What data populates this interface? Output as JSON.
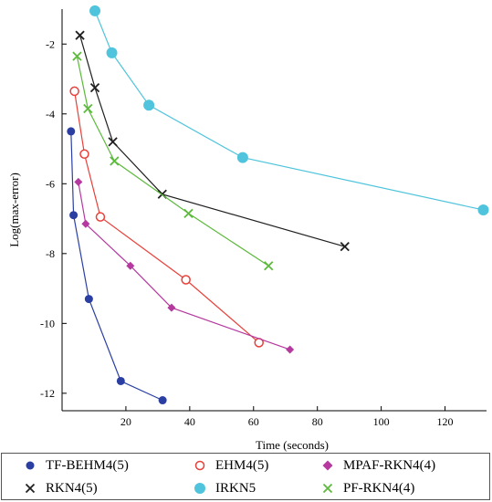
{
  "chart_data": {
    "type": "line",
    "title": "",
    "xlabel": "Time (seconds)",
    "ylabel": "Log(max-error)",
    "xlim": [
      0,
      133
    ],
    "ylim": [
      -12.5,
      -1.0
    ],
    "xticks": [
      20,
      40,
      60,
      80,
      100,
      120
    ],
    "yticks": [
      -2,
      -4,
      -6,
      -8,
      -10,
      -12
    ],
    "grid": false,
    "legend_position": "bottom",
    "series": [
      {
        "name": "TF-BEHM4(5)",
        "color": "#2b3fa3",
        "marker": "dot",
        "x": [
          2.8,
          3.6,
          8.4,
          18.4,
          31.5
        ],
        "y": [
          -4.5,
          -6.9,
          -9.3,
          -11.65,
          -12.2
        ]
      },
      {
        "name": "EHM4(5)",
        "color": "#e8403a",
        "marker": "circle",
        "x": [
          3.9,
          7.0,
          12.0,
          38.8,
          61.7
        ],
        "y": [
          -3.35,
          -5.15,
          -6.95,
          -8.75,
          -10.55
        ]
      },
      {
        "name": "MPAF-RKN4(4)",
        "color": "#b5399f",
        "marker": "diamond",
        "x": [
          5.1,
          7.4,
          21.4,
          34.3,
          71.4
        ],
        "y": [
          -5.95,
          -7.15,
          -8.35,
          -9.55,
          -10.75
        ]
      },
      {
        "name": "RKN4(5)",
        "color": "#202020",
        "marker": "cross",
        "x": [
          5.6,
          10.3,
          15.9,
          31.4,
          88.6
        ],
        "y": [
          -1.75,
          -3.25,
          -4.8,
          -6.3,
          -7.8
        ]
      },
      {
        "name": "IRKN5",
        "color": "#4fc4dc",
        "marker": "bigdot",
        "x": [
          10.3,
          15.6,
          27.2,
          56.6,
          132.0
        ],
        "y": [
          -1.05,
          -2.25,
          -3.75,
          -5.25,
          -6.75
        ]
      },
      {
        "name": "PF-RKN4(4)",
        "color": "#5cba3c",
        "marker": "cross",
        "x": [
          4.7,
          8.1,
          16.4,
          39.6,
          64.7
        ],
        "y": [
          -2.35,
          -3.85,
          -5.35,
          -6.85,
          -8.35
        ]
      }
    ]
  },
  "legend": [
    {
      "label": "TF-BEHM4(5)"
    },
    {
      "label": "EHM4(5)"
    },
    {
      "label": "MPAF-RKN4(4)"
    },
    {
      "label": "RKN4(5)"
    },
    {
      "label": "IRKN5"
    },
    {
      "label": "PF-RKN4(4)"
    }
  ]
}
